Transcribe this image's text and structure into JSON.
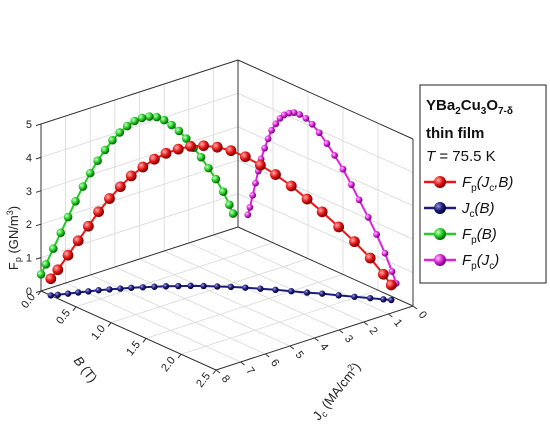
{
  "chart_data": {
    "type": "scatter3d",
    "title": "",
    "axes": {
      "x": {
        "label": "B (T)",
        "range": [
          0,
          8
        ],
        "ticks": [
          "0",
          "1",
          "2",
          "3",
          "4",
          "5",
          "6",
          "7",
          "8"
        ]
      },
      "y": {
        "label": "J_c (MA/cm²)",
        "range": [
          0,
          2.5
        ],
        "ticks": [
          "0.0",
          "0.5",
          "1.0",
          "1.5",
          "2.0",
          "2.5"
        ]
      },
      "z": {
        "label": "F_p (GN/m³)",
        "range": [
          0,
          5
        ],
        "ticks": [
          "0",
          "1",
          "2",
          "3",
          "4",
          "5"
        ]
      }
    },
    "legend": {
      "placement": "right",
      "title_line1": "YBa2Cu3O7-δ",
      "title_line2": "thin film",
      "title_line3": "T = 75.5 K",
      "entries": [
        {
          "label": "Fp(Jc,B)",
          "color": "#e81818"
        },
        {
          "label": "Jc(B)",
          "color": "#1c1c7c"
        },
        {
          "label": "Fp(B)",
          "color": "#22cc22"
        },
        {
          "label": "Fp(Jc)",
          "color": "#dd22dd"
        }
      ]
    },
    "series": [
      {
        "name": "Fp(Jc,B)",
        "color": "#e81818",
        "points": [
          [
            0.2,
            2.26,
            0.45
          ],
          [
            0.35,
            2.2,
            0.75
          ],
          [
            0.6,
            2.1,
            1.2
          ],
          [
            0.9,
            1.98,
            1.65
          ],
          [
            1.2,
            1.86,
            2.05
          ],
          [
            1.5,
            1.73,
            2.45
          ],
          [
            1.8,
            1.62,
            2.8
          ],
          [
            2.1,
            1.5,
            3.15
          ],
          [
            2.4,
            1.38,
            3.45
          ],
          [
            2.7,
            1.27,
            3.7
          ],
          [
            3.0,
            1.16,
            3.92
          ],
          [
            3.3,
            1.06,
            4.08
          ],
          [
            3.6,
            0.97,
            4.17
          ],
          [
            3.9,
            0.88,
            4.2
          ],
          [
            4.2,
            0.8,
            4.18
          ],
          [
            4.5,
            0.73,
            4.1
          ],
          [
            4.8,
            0.66,
            3.98
          ],
          [
            5.1,
            0.6,
            3.82
          ],
          [
            5.4,
            0.54,
            3.6
          ],
          [
            5.7,
            0.48,
            3.35
          ],
          [
            6.0,
            0.43,
            3.05
          ],
          [
            6.3,
            0.38,
            2.72
          ],
          [
            6.6,
            0.33,
            2.35
          ],
          [
            6.9,
            0.29,
            1.95
          ],
          [
            7.2,
            0.25,
            1.55
          ],
          [
            7.5,
            0.21,
            1.15
          ],
          [
            7.8,
            0.17,
            0.75
          ],
          [
            8.0,
            0.14,
            0.5
          ]
        ]
      },
      {
        "name": "Jc(B)",
        "color": "#1c1c7c",
        "points": [
          [
            0.2,
            2.26,
            0
          ],
          [
            0.35,
            2.2,
            0
          ],
          [
            0.6,
            2.1,
            0
          ],
          [
            0.9,
            1.98,
            0
          ],
          [
            1.2,
            1.86,
            0
          ],
          [
            1.5,
            1.73,
            0
          ],
          [
            1.8,
            1.62,
            0
          ],
          [
            2.1,
            1.5,
            0
          ],
          [
            2.4,
            1.38,
            0
          ],
          [
            2.7,
            1.27,
            0
          ],
          [
            3.0,
            1.16,
            0
          ],
          [
            3.3,
            1.06,
            0
          ],
          [
            3.6,
            0.97,
            0
          ],
          [
            3.9,
            0.88,
            0
          ],
          [
            4.2,
            0.8,
            0
          ],
          [
            4.5,
            0.73,
            0
          ],
          [
            4.8,
            0.66,
            0
          ],
          [
            5.1,
            0.6,
            0
          ],
          [
            5.4,
            0.54,
            0
          ],
          [
            5.7,
            0.48,
            0
          ],
          [
            6.0,
            0.43,
            0
          ],
          [
            6.3,
            0.38,
            0
          ],
          [
            6.6,
            0.33,
            0
          ],
          [
            6.9,
            0.29,
            0
          ],
          [
            7.2,
            0.25,
            0
          ],
          [
            7.5,
            0.21,
            0
          ],
          [
            7.8,
            0.17,
            0
          ],
          [
            8.0,
            0.14,
            0
          ]
        ]
      },
      {
        "name": "Fp(B)",
        "color": "#22cc22",
        "points": [
          [
            0.2,
            0,
            0.45
          ],
          [
            0.35,
            0,
            0.75
          ],
          [
            0.6,
            0,
            1.2
          ],
          [
            0.9,
            0,
            1.65
          ],
          [
            1.2,
            0,
            2.05
          ],
          [
            1.5,
            0,
            2.45
          ],
          [
            1.8,
            0,
            2.8
          ],
          [
            2.1,
            0,
            3.15
          ],
          [
            2.4,
            0,
            3.45
          ],
          [
            2.7,
            0,
            3.7
          ],
          [
            3.0,
            0,
            3.92
          ],
          [
            3.3,
            0,
            4.08
          ],
          [
            3.6,
            0,
            4.17
          ],
          [
            3.9,
            0,
            4.2
          ],
          [
            4.2,
            0,
            4.18
          ],
          [
            4.5,
            0,
            4.1
          ],
          [
            4.8,
            0,
            3.98
          ],
          [
            5.1,
            0,
            3.82
          ],
          [
            5.4,
            0,
            3.6
          ],
          [
            5.7,
            0,
            3.35
          ],
          [
            6.0,
            0,
            3.05
          ],
          [
            6.3,
            0,
            2.72
          ],
          [
            6.6,
            0,
            2.35
          ],
          [
            6.9,
            0,
            1.95
          ],
          [
            7.2,
            0,
            1.55
          ],
          [
            7.5,
            0,
            1.15
          ],
          [
            7.8,
            0,
            0.75
          ],
          [
            8.0,
            0,
            0.5
          ]
        ]
      },
      {
        "name": "Fp(Jc)",
        "color": "#dd22dd",
        "points": [
          [
            0,
            2.26,
            0.45
          ],
          [
            0,
            2.2,
            0.75
          ],
          [
            0,
            2.1,
            1.2
          ],
          [
            0,
            1.98,
            1.65
          ],
          [
            0,
            1.86,
            2.05
          ],
          [
            0,
            1.73,
            2.45
          ],
          [
            0,
            1.62,
            2.8
          ],
          [
            0,
            1.5,
            3.15
          ],
          [
            0,
            1.38,
            3.45
          ],
          [
            0,
            1.27,
            3.7
          ],
          [
            0,
            1.16,
            3.92
          ],
          [
            0,
            1.06,
            4.08
          ],
          [
            0,
            0.97,
            4.17
          ],
          [
            0,
            0.88,
            4.2
          ],
          [
            0,
            0.8,
            4.18
          ],
          [
            0,
            0.73,
            4.1
          ],
          [
            0,
            0.66,
            3.98
          ],
          [
            0,
            0.6,
            3.82
          ],
          [
            0,
            0.54,
            3.6
          ],
          [
            0,
            0.48,
            3.35
          ],
          [
            0,
            0.43,
            3.05
          ],
          [
            0,
            0.38,
            2.72
          ],
          [
            0,
            0.33,
            2.35
          ],
          [
            0,
            0.29,
            1.95
          ],
          [
            0,
            0.25,
            1.55
          ],
          [
            0,
            0.21,
            1.15
          ],
          [
            0,
            0.17,
            0.75
          ],
          [
            0,
            0.14,
            0.5
          ]
        ]
      }
    ]
  }
}
